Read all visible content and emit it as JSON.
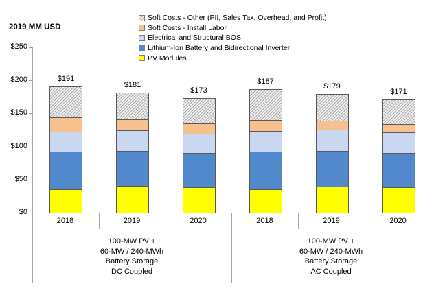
{
  "axis_title": "2019 MM USD",
  "legend": [
    {
      "label": "Soft Costs - Other (PII, Sales Tax, Overhead, and Profit)",
      "swatch": "hatch"
    },
    {
      "label": "Soft Costs - Install Labor",
      "swatch": "#F6C08F"
    },
    {
      "label": "Electrical and Structural BOS",
      "swatch": "#C9D7F0"
    },
    {
      "label": "Lithium-Ion Battery and Bidirectional Inverter",
      "swatch": "#5289CC"
    },
    {
      "label": "PV Modules",
      "swatch": "#FFFF00"
    }
  ],
  "chart_data": {
    "type": "bar",
    "stacked": true,
    "units": "2019 MM USD",
    "ylabel": "2019 MM USD",
    "ylim": [
      0,
      250
    ],
    "ytick_step": 50,
    "yticks": [
      "$0",
      "$50",
      "$100",
      "$150",
      "$200",
      "$250"
    ],
    "grid": false,
    "legend_position": "top",
    "categories": [
      "2018",
      "2019",
      "2020",
      "2018",
      "2019",
      "2020"
    ],
    "groups": [
      {
        "lines": [
          "100-MW PV +",
          "60-MW / 240-MWh",
          "Battery Storage",
          "DC Coupled"
        ],
        "bar_indexes": [
          0,
          1,
          2
        ]
      },
      {
        "lines": [
          "100-MW PV +",
          "60-MW / 240-MWh",
          "Battery Storage",
          "AC Coupled"
        ],
        "bar_indexes": [
          3,
          4,
          5
        ]
      }
    ],
    "series": [
      {
        "name": "PV Modules",
        "color": "#FFFF00",
        "values": [
          35,
          40,
          38,
          35,
          39,
          38
        ]
      },
      {
        "name": "Lithium-Ion Battery and Bidirectional Inverter",
        "color": "#5289CC",
        "values": [
          57,
          53,
          52,
          57,
          54,
          52
        ]
      },
      {
        "name": "Electrical and Structural BOS",
        "color": "#C9D7F0",
        "values": [
          31,
          31,
          29,
          32,
          33,
          32
        ]
      },
      {
        "name": "Soft Costs - Install Labor",
        "color": "#F6C08F",
        "values": [
          21,
          17,
          16,
          16,
          13,
          12
        ]
      },
      {
        "name": "Soft Costs - Other (PII, Sales Tax, Overhead, and Profit)",
        "color": "hatch",
        "values": [
          47,
          40,
          38,
          47,
          40,
          37
        ]
      }
    ],
    "totals": [
      "$191",
      "$181",
      "$173",
      "$187",
      "$179",
      "$171"
    ],
    "hatch_colors": {
      "line": "#ababab",
      "background": "#f0f0f0"
    },
    "axis_color": "#a6a6a6",
    "bar_border_color": "#595959"
  }
}
